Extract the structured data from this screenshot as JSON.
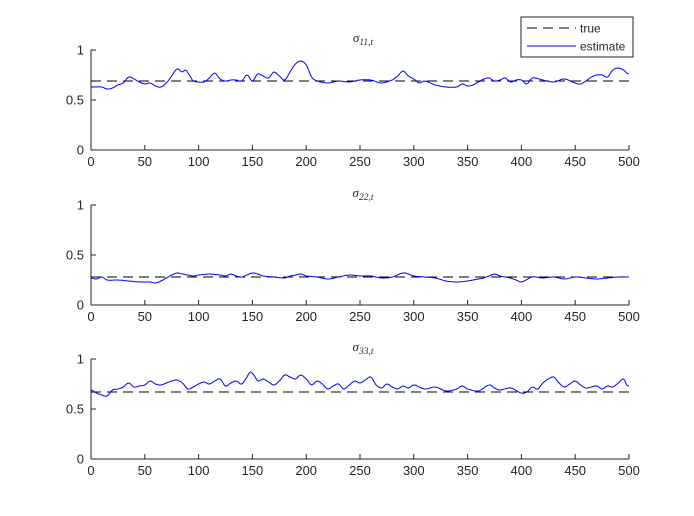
{
  "legend": {
    "entries": [
      {
        "label": "true",
        "style": "dashed",
        "color": "#000000"
      },
      {
        "label": "estimate",
        "style": "solid",
        "color": "#0000ff"
      }
    ],
    "placement": "top-right"
  },
  "chart_data": [
    {
      "type": "line",
      "title": "σ11,t",
      "xlim": [
        0,
        500
      ],
      "ylim": [
        0,
        1
      ],
      "xticks": [
        0,
        50,
        100,
        150,
        200,
        250,
        300,
        350,
        400,
        450,
        500
      ],
      "yticks": [
        0,
        0.5,
        1
      ],
      "true_value": 0.69,
      "estimate_knots": [
        [
          0,
          0.63
        ],
        [
          10,
          0.63
        ],
        [
          15,
          0.61
        ],
        [
          20,
          0.62
        ],
        [
          25,
          0.65
        ],
        [
          30,
          0.67
        ],
        [
          35,
          0.73
        ],
        [
          40,
          0.71
        ],
        [
          45,
          0.68
        ],
        [
          50,
          0.66
        ],
        [
          55,
          0.67
        ],
        [
          60,
          0.64
        ],
        [
          65,
          0.63
        ],
        [
          70,
          0.67
        ],
        [
          75,
          0.74
        ],
        [
          80,
          0.81
        ],
        [
          85,
          0.78
        ],
        [
          88,
          0.8
        ],
        [
          92,
          0.74
        ],
        [
          95,
          0.69
        ],
        [
          100,
          0.68
        ],
        [
          105,
          0.68
        ],
        [
          110,
          0.72
        ],
        [
          115,
          0.77
        ],
        [
          120,
          0.71
        ],
        [
          125,
          0.69
        ],
        [
          130,
          0.7
        ],
        [
          135,
          0.7
        ],
        [
          140,
          0.69
        ],
        [
          145,
          0.75
        ],
        [
          150,
          0.69
        ],
        [
          155,
          0.76
        ],
        [
          160,
          0.74
        ],
        [
          165,
          0.72
        ],
        [
          170,
          0.78
        ],
        [
          175,
          0.74
        ],
        [
          180,
          0.7
        ],
        [
          185,
          0.78
        ],
        [
          190,
          0.86
        ],
        [
          195,
          0.89
        ],
        [
          200,
          0.85
        ],
        [
          205,
          0.73
        ],
        [
          210,
          0.69
        ],
        [
          220,
          0.67
        ],
        [
          230,
          0.69
        ],
        [
          240,
          0.68
        ],
        [
          250,
          0.7
        ],
        [
          260,
          0.7
        ],
        [
          270,
          0.67
        ],
        [
          280,
          0.7
        ],
        [
          285,
          0.74
        ],
        [
          290,
          0.79
        ],
        [
          295,
          0.74
        ],
        [
          300,
          0.71
        ],
        [
          305,
          0.67
        ],
        [
          310,
          0.69
        ],
        [
          320,
          0.65
        ],
        [
          330,
          0.63
        ],
        [
          340,
          0.63
        ],
        [
          345,
          0.66
        ],
        [
          350,
          0.64
        ],
        [
          355,
          0.65
        ],
        [
          360,
          0.68
        ],
        [
          365,
          0.71
        ],
        [
          370,
          0.72
        ],
        [
          375,
          0.69
        ],
        [
          380,
          0.7
        ],
        [
          385,
          0.72
        ],
        [
          390,
          0.68
        ],
        [
          395,
          0.7
        ],
        [
          400,
          0.7
        ],
        [
          405,
          0.66
        ],
        [
          410,
          0.72
        ],
        [
          420,
          0.7
        ],
        [
          430,
          0.68
        ],
        [
          440,
          0.71
        ],
        [
          450,
          0.67
        ],
        [
          455,
          0.66
        ],
        [
          460,
          0.69
        ],
        [
          465,
          0.73
        ],
        [
          470,
          0.75
        ],
        [
          475,
          0.75
        ],
        [
          480,
          0.73
        ],
        [
          485,
          0.8
        ],
        [
          490,
          0.82
        ],
        [
          495,
          0.8
        ],
        [
          498,
          0.77
        ],
        [
          500,
          0.76
        ]
      ]
    },
    {
      "type": "line",
      "title": "σ22,t",
      "xlim": [
        0,
        500
      ],
      "ylim": [
        0,
        1
      ],
      "xticks": [
        0,
        50,
        100,
        150,
        200,
        250,
        300,
        350,
        400,
        450,
        500
      ],
      "yticks": [
        0,
        0.5,
        1
      ],
      "true_value": 0.28,
      "estimate_knots": [
        [
          0,
          0.27
        ],
        [
          5,
          0.26
        ],
        [
          10,
          0.28
        ],
        [
          15,
          0.25
        ],
        [
          25,
          0.25
        ],
        [
          35,
          0.24
        ],
        [
          45,
          0.23
        ],
        [
          55,
          0.23
        ],
        [
          60,
          0.22
        ],
        [
          65,
          0.24
        ],
        [
          70,
          0.27
        ],
        [
          75,
          0.3
        ],
        [
          80,
          0.32
        ],
        [
          85,
          0.31
        ],
        [
          90,
          0.3
        ],
        [
          95,
          0.29
        ],
        [
          100,
          0.3
        ],
        [
          110,
          0.31
        ],
        [
          120,
          0.3
        ],
        [
          125,
          0.29
        ],
        [
          130,
          0.31
        ],
        [
          135,
          0.29
        ],
        [
          140,
          0.28
        ],
        [
          145,
          0.3
        ],
        [
          150,
          0.32
        ],
        [
          155,
          0.31
        ],
        [
          160,
          0.29
        ],
        [
          170,
          0.28
        ],
        [
          180,
          0.27
        ],
        [
          185,
          0.29
        ],
        [
          190,
          0.3
        ],
        [
          195,
          0.31
        ],
        [
          200,
          0.29
        ],
        [
          210,
          0.28
        ],
        [
          220,
          0.26
        ],
        [
          230,
          0.28
        ],
        [
          240,
          0.3
        ],
        [
          250,
          0.29
        ],
        [
          260,
          0.29
        ],
        [
          270,
          0.27
        ],
        [
          280,
          0.28
        ],
        [
          290,
          0.32
        ],
        [
          295,
          0.31
        ],
        [
          300,
          0.29
        ],
        [
          310,
          0.28
        ],
        [
          320,
          0.27
        ],
        [
          330,
          0.24
        ],
        [
          340,
          0.23
        ],
        [
          350,
          0.24
        ],
        [
          360,
          0.26
        ],
        [
          365,
          0.27
        ],
        [
          370,
          0.29
        ],
        [
          375,
          0.31
        ],
        [
          380,
          0.29
        ],
        [
          390,
          0.27
        ],
        [
          395,
          0.25
        ],
        [
          400,
          0.23
        ],
        [
          410,
          0.28
        ],
        [
          420,
          0.27
        ],
        [
          430,
          0.28
        ],
        [
          440,
          0.26
        ],
        [
          450,
          0.28
        ],
        [
          460,
          0.27
        ],
        [
          470,
          0.26
        ],
        [
          480,
          0.27
        ],
        [
          490,
          0.28
        ],
        [
          500,
          0.28
        ]
      ]
    },
    {
      "type": "line",
      "title": "σ33,t",
      "xlim": [
        0,
        500
      ],
      "ylim": [
        0,
        1
      ],
      "xticks": [
        0,
        50,
        100,
        150,
        200,
        250,
        300,
        350,
        400,
        450,
        500
      ],
      "yticks": [
        0,
        0.5,
        1
      ],
      "true_value": 0.67,
      "estimate_knots": [
        [
          0,
          0.69
        ],
        [
          5,
          0.66
        ],
        [
          10,
          0.64
        ],
        [
          15,
          0.63
        ],
        [
          20,
          0.69
        ],
        [
          25,
          0.7
        ],
        [
          30,
          0.72
        ],
        [
          35,
          0.76
        ],
        [
          40,
          0.72
        ],
        [
          45,
          0.73
        ],
        [
          50,
          0.74
        ],
        [
          55,
          0.78
        ],
        [
          60,
          0.75
        ],
        [
          65,
          0.74
        ],
        [
          70,
          0.76
        ],
        [
          75,
          0.78
        ],
        [
          80,
          0.79
        ],
        [
          85,
          0.76
        ],
        [
          90,
          0.7
        ],
        [
          95,
          0.72
        ],
        [
          100,
          0.75
        ],
        [
          105,
          0.77
        ],
        [
          110,
          0.75
        ],
        [
          115,
          0.78
        ],
        [
          120,
          0.8
        ],
        [
          125,
          0.73
        ],
        [
          130,
          0.76
        ],
        [
          135,
          0.78
        ],
        [
          140,
          0.75
        ],
        [
          145,
          0.82
        ],
        [
          148,
          0.87
        ],
        [
          152,
          0.83
        ],
        [
          155,
          0.78
        ],
        [
          160,
          0.8
        ],
        [
          165,
          0.77
        ],
        [
          170,
          0.74
        ],
        [
          175,
          0.78
        ],
        [
          180,
          0.84
        ],
        [
          185,
          0.82
        ],
        [
          190,
          0.8
        ],
        [
          195,
          0.84
        ],
        [
          200,
          0.8
        ],
        [
          205,
          0.74
        ],
        [
          210,
          0.78
        ],
        [
          215,
          0.75
        ],
        [
          220,
          0.7
        ],
        [
          225,
          0.73
        ],
        [
          230,
          0.75
        ],
        [
          235,
          0.7
        ],
        [
          240,
          0.74
        ],
        [
          245,
          0.78
        ],
        [
          250,
          0.76
        ],
        [
          255,
          0.79
        ],
        [
          260,
          0.82
        ],
        [
          265,
          0.74
        ],
        [
          270,
          0.71
        ],
        [
          275,
          0.75
        ],
        [
          280,
          0.72
        ],
        [
          285,
          0.7
        ],
        [
          290,
          0.73
        ],
        [
          295,
          0.71
        ],
        [
          300,
          0.74
        ],
        [
          310,
          0.7
        ],
        [
          320,
          0.72
        ],
        [
          330,
          0.68
        ],
        [
          340,
          0.7
        ],
        [
          345,
          0.73
        ],
        [
          350,
          0.7
        ],
        [
          360,
          0.68
        ],
        [
          370,
          0.74
        ],
        [
          375,
          0.71
        ],
        [
          380,
          0.69
        ],
        [
          390,
          0.71
        ],
        [
          400,
          0.66
        ],
        [
          405,
          0.67
        ],
        [
          410,
          0.72
        ],
        [
          415,
          0.7
        ],
        [
          420,
          0.76
        ],
        [
          425,
          0.8
        ],
        [
          430,
          0.82
        ],
        [
          435,
          0.76
        ],
        [
          440,
          0.72
        ],
        [
          445,
          0.75
        ],
        [
          450,
          0.78
        ],
        [
          455,
          0.74
        ],
        [
          460,
          0.71
        ],
        [
          465,
          0.72
        ],
        [
          470,
          0.73
        ],
        [
          475,
          0.7
        ],
        [
          480,
          0.73
        ],
        [
          485,
          0.72
        ],
        [
          490,
          0.76
        ],
        [
          495,
          0.8
        ],
        [
          498,
          0.74
        ],
        [
          500,
          0.73
        ]
      ]
    }
  ]
}
